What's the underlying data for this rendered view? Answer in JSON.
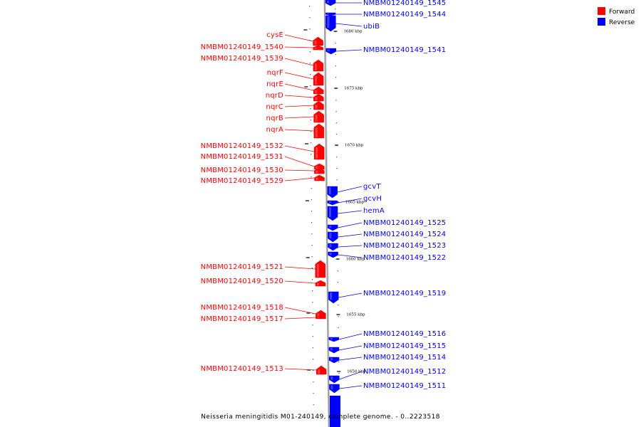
{
  "legend": {
    "forward_label": "Forward",
    "reverse_label": "Reverse",
    "forward_color": "#ff0000",
    "reverse_color": "#0000ff"
  },
  "caption": "Neisseria meningitidis M01-240149, complete genome. - 0..2223518",
  "ticks": [
    {
      "label": "1680 kbp"
    },
    {
      "label": "1675 kbp"
    },
    {
      "label": "1670 kbp"
    },
    {
      "label": "1665 kbp"
    },
    {
      "label": "1660 kbp"
    },
    {
      "label": "1655 kbp"
    },
    {
      "label": "1650 kbp"
    }
  ],
  "genes": [
    {
      "name": "NMBM01240149_1545",
      "strand": "reverse"
    },
    {
      "name": "NMBM01240149_1544",
      "strand": "reverse"
    },
    {
      "name": "ubiB",
      "strand": "reverse"
    },
    {
      "name": "cysE",
      "strand": "forward"
    },
    {
      "name": "NMBM01240149_1540",
      "strand": "forward"
    },
    {
      "name": "NMBM01240149_1541",
      "strand": "reverse"
    },
    {
      "name": "NMBM01240149_1539",
      "strand": "forward"
    },
    {
      "name": "nqrF",
      "strand": "forward"
    },
    {
      "name": "nqrE",
      "strand": "forward"
    },
    {
      "name": "nqrD",
      "strand": "forward"
    },
    {
      "name": "nqrC",
      "strand": "forward"
    },
    {
      "name": "nqrB",
      "strand": "forward"
    },
    {
      "name": "nqrA",
      "strand": "forward"
    },
    {
      "name": "NMBM01240149_1532",
      "strand": "forward"
    },
    {
      "name": "NMBM01240149_1531",
      "strand": "forward"
    },
    {
      "name": "NMBM01240149_1530",
      "strand": "forward"
    },
    {
      "name": "NMBM01240149_1529",
      "strand": "forward"
    },
    {
      "name": "gcvT",
      "strand": "reverse"
    },
    {
      "name": "gcvH",
      "strand": "reverse"
    },
    {
      "name": "hemA",
      "strand": "reverse"
    },
    {
      "name": "NMBM01240149_1525",
      "strand": "reverse"
    },
    {
      "name": "NMBM01240149_1524",
      "strand": "reverse"
    },
    {
      "name": "NMBM01240149_1523",
      "strand": "reverse"
    },
    {
      "name": "NMBM01240149_1522",
      "strand": "reverse"
    },
    {
      "name": "NMBM01240149_1521",
      "strand": "forward"
    },
    {
      "name": "NMBM01240149_1520",
      "strand": "forward"
    },
    {
      "name": "NMBM01240149_1519",
      "strand": "reverse"
    },
    {
      "name": "NMBM01240149_1518",
      "strand": "forward"
    },
    {
      "name": "NMBM01240149_1517",
      "strand": "forward"
    },
    {
      "name": "NMBM01240149_1516",
      "strand": "reverse"
    },
    {
      "name": "NMBM01240149_1515",
      "strand": "reverse"
    },
    {
      "name": "NMBM01240149_1514",
      "strand": "reverse"
    },
    {
      "name": "NMBM01240149_1513",
      "strand": "forward"
    },
    {
      "name": "NMBM01240149_1512",
      "strand": "reverse"
    },
    {
      "name": "NMBM01240149_1511",
      "strand": "reverse"
    }
  ]
}
